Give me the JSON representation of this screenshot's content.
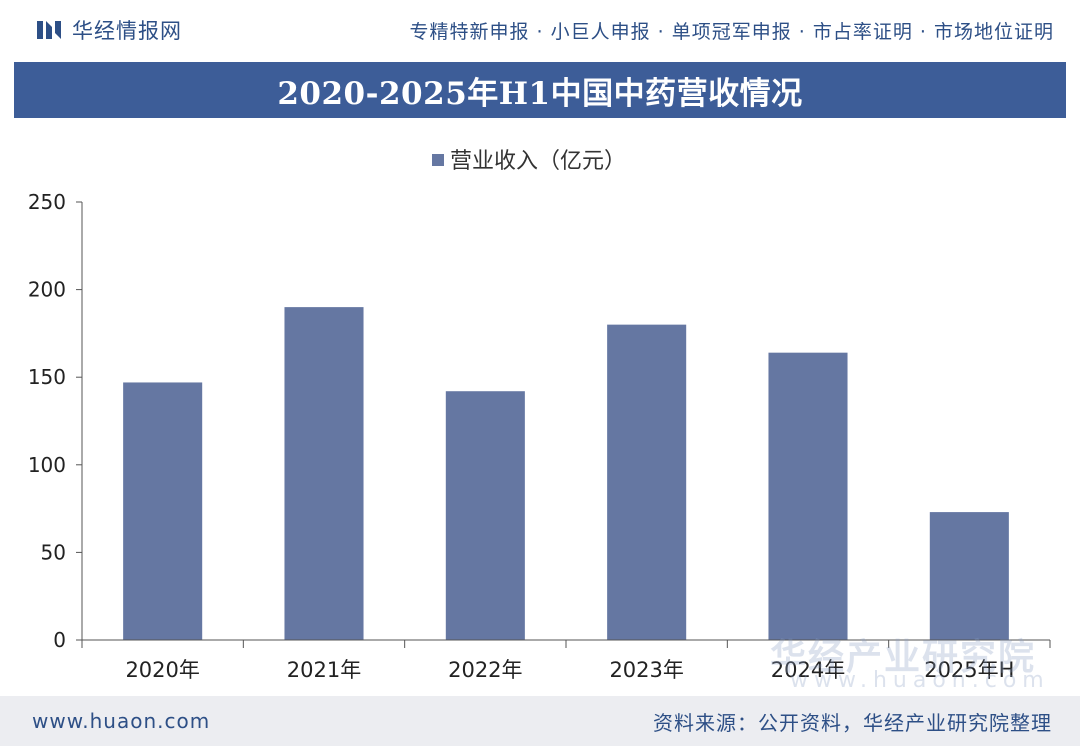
{
  "header": {
    "brand_name": "华经情报网",
    "services": "专精特新申报 · 小巨人申报 · 单项冠军申报 · 市占率证明 · 市场地位证明"
  },
  "chart_data": {
    "type": "bar",
    "title": "2020-2025年H1中国中药营收情况",
    "categories": [
      "2020年",
      "2021年",
      "2022年",
      "2023年",
      "2024年",
      "2025年H"
    ],
    "series": [
      {
        "name": "营业收入（亿元）",
        "values": [
          147,
          190,
          142,
          180,
          164,
          73
        ]
      }
    ],
    "ylim": [
      0,
      250
    ],
    "yticks": [
      "0",
      "50",
      "100",
      "150",
      "200",
      "250"
    ],
    "legend_position": "top-center",
    "grid": false,
    "bar_color": "#6577a2"
  },
  "watermark": {
    "org": "华经产业研究院",
    "site": "www.huaon.com"
  },
  "footer": {
    "url": "www.huaon.com",
    "source": "资料来源：公开资料，华经产业研究院整理"
  }
}
